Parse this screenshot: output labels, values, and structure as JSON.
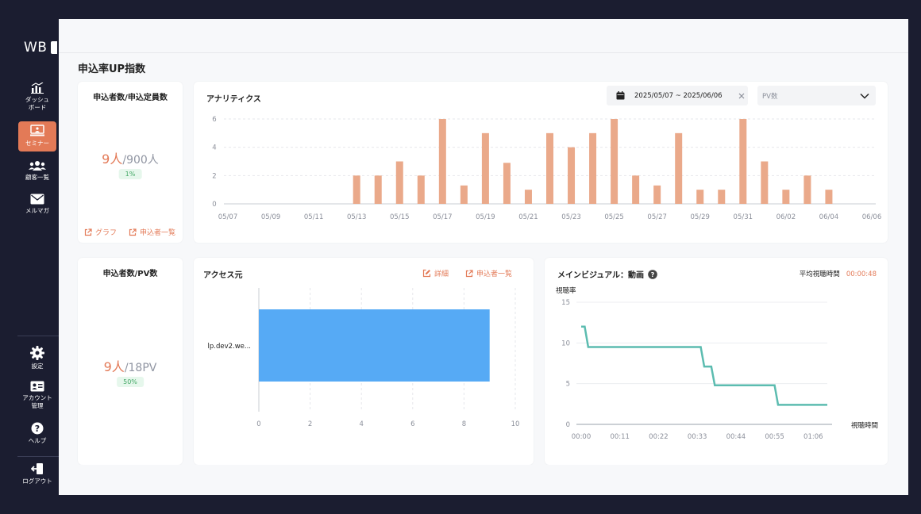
{
  "app": {
    "logo_text": "WB"
  },
  "sidebar": {
    "items": [
      {
        "label": "ダッシュ\nボード",
        "icon": "bar-chart-icon"
      },
      {
        "label": "セミナー",
        "icon": "presentation-icon",
        "active": true
      },
      {
        "label": "顧客一覧",
        "icon": "users-icon"
      },
      {
        "label": "メルマガ",
        "icon": "mail-icon"
      }
    ],
    "bottom_items": [
      {
        "label": "設定",
        "icon": "gear-icon"
      },
      {
        "label": "アカウント\n管理",
        "icon": "id-card-icon"
      },
      {
        "label": "ヘルプ",
        "icon": "help-icon"
      },
      {
        "label": "ログアウト",
        "icon": "logout-icon"
      }
    ]
  },
  "page": {
    "title": "申込率UP指数"
  },
  "kpi1": {
    "title": "申込者数/申込定員数",
    "value": "9人",
    "total": "/900人",
    "rate": "1%",
    "link_graph": "グラフ",
    "link_list": "申込者一覧"
  },
  "kpi2": {
    "title": "申込者数/PV数",
    "value": "9人",
    "total": "/18PV",
    "rate": "50%"
  },
  "analytics": {
    "title": "アナリティクス",
    "date_range": "2025/05/07 ~ 2025/06/06",
    "metric_select": "PV数",
    "colors": {
      "bar": "#eaa98a",
      "grid": "#e6e7eb"
    }
  },
  "access": {
    "title": "アクセス元",
    "link_detail": "詳細",
    "link_list": "申込者一覧",
    "colors": {
      "bar": "#56aaf5"
    }
  },
  "visual": {
    "title": "メインビジュアル：動画",
    "avg_label": "平均視聴時間",
    "avg_value": "00:00:48",
    "colors": {
      "line": "#5cbcb0"
    }
  },
  "chart_data": [
    {
      "type": "bar",
      "categories": [
        "05/07",
        "05/08",
        "05/09",
        "05/10",
        "05/11",
        "05/12",
        "05/13",
        "05/14",
        "05/15",
        "05/16",
        "05/17",
        "05/18",
        "05/19",
        "05/20",
        "05/21",
        "05/22",
        "05/23",
        "05/24",
        "05/25",
        "05/26",
        "05/27",
        "05/28",
        "05/29",
        "05/30",
        "05/31",
        "06/01",
        "06/02",
        "06/03",
        "06/04",
        "06/05",
        "06/06"
      ],
      "values": [
        0,
        0,
        0,
        0,
        0,
        0,
        2,
        2,
        3,
        2,
        6,
        1.3,
        5,
        2.9,
        1,
        5,
        4,
        5,
        6,
        2,
        1.3,
        5,
        1,
        1,
        6,
        3,
        1,
        2,
        1,
        0,
        0
      ],
      "tick_labels": [
        "05/07",
        "05/09",
        "05/11",
        "05/13",
        "05/15",
        "05/17",
        "05/19",
        "05/21",
        "05/23",
        "05/25",
        "05/27",
        "05/29",
        "05/31",
        "06/02",
        "06/04",
        "06/06"
      ],
      "ylim": [
        0,
        6
      ],
      "yticks": [
        0,
        2,
        4,
        6
      ],
      "grid": true
    },
    {
      "type": "bar",
      "orientation": "horizontal",
      "categories": [
        "lp.dev2.we..."
      ],
      "values": [
        9
      ],
      "xlim": [
        0,
        10
      ],
      "xticks": [
        0,
        2,
        4,
        6,
        8,
        10
      ],
      "grid": true
    },
    {
      "type": "line",
      "ylabel": "視聴率",
      "xlabel": "視聴時間",
      "x": [
        "00:00",
        "00:01",
        "00:02",
        "00:34",
        "00:35",
        "00:37",
        "00:38",
        "00:55",
        "00:56",
        "01:10"
      ],
      "x_seconds": [
        0,
        1,
        2,
        34,
        35,
        37,
        38,
        55,
        56,
        70
      ],
      "y": [
        12,
        12,
        9.5,
        9.5,
        7.1,
        7.1,
        4.8,
        4.8,
        2.4,
        2.4
      ],
      "xticks": [
        "00:00",
        "00:11",
        "00:22",
        "00:33",
        "00:44",
        "00:55",
        "01:06"
      ],
      "ylim": [
        0,
        15
      ],
      "yticks": [
        0,
        5,
        10,
        15
      ],
      "grid": true
    }
  ]
}
